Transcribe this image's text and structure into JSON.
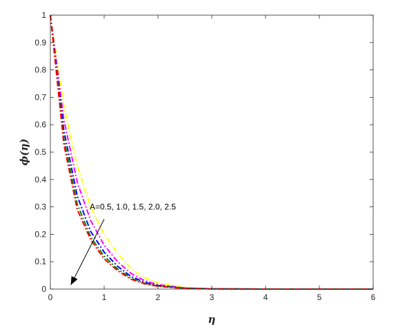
{
  "chart_data": {
    "type": "line",
    "title": "",
    "xlabel": "η",
    "ylabel": "ϕ(η)",
    "xlim": [
      0,
      6
    ],
    "ylim": [
      0,
      1
    ],
    "xticks": [
      "0",
      "1",
      "2",
      "3",
      "4",
      "5",
      "6"
    ],
    "yticks": [
      "0",
      "0.1",
      "0.2",
      "0.3",
      "0.4",
      "0.5",
      "0.6",
      "0.7",
      "0.8",
      "0.9",
      "1"
    ],
    "grid": false,
    "legend": "none",
    "x": [
      0,
      0.25,
      0.5,
      0.75,
      1,
      1.25,
      1.5,
      1.75,
      2,
      2.5,
      3,
      4,
      5,
      6
    ],
    "series": [
      {
        "color": "#FFFF00",
        "style": "dash-dot",
        "values": [
          1.0,
          0.67,
          0.45,
          0.3,
          0.2,
          0.13,
          0.075,
          0.042,
          0.022,
          0.006,
          0.001,
          0,
          0,
          0
        ]
      },
      {
        "color": "#FF00FF",
        "style": "dash-dot",
        "values": [
          1.0,
          0.62,
          0.39,
          0.25,
          0.16,
          0.1,
          0.057,
          0.031,
          0.016,
          0.004,
          0.001,
          0,
          0,
          0
        ]
      },
      {
        "color": "#0000FF",
        "style": "dash-dot",
        "values": [
          1.0,
          0.58,
          0.34,
          0.21,
          0.135,
          0.083,
          0.046,
          0.025,
          0.013,
          0.003,
          0.001,
          0,
          0,
          0
        ]
      },
      {
        "color": "#008000",
        "style": "dash-dot",
        "values": [
          1.0,
          0.55,
          0.31,
          0.19,
          0.12,
          0.073,
          0.04,
          0.021,
          0.011,
          0.003,
          0.001,
          0,
          0,
          0
        ]
      },
      {
        "color": "#FF0000",
        "style": "dash-dot",
        "values": [
          1.0,
          0.53,
          0.29,
          0.18,
          0.11,
          0.067,
          0.036,
          0.019,
          0.01,
          0.002,
          0.0005,
          0,
          0,
          0
        ]
      }
    ],
    "annotation": {
      "text": "A=0.5, 1.0, 1.5, 2.0, 2.5",
      "x": 0.73,
      "y": 0.3,
      "arrow_from": [
        1.0,
        0.255
      ],
      "arrow_to": [
        0.38,
        0.015
      ]
    }
  }
}
